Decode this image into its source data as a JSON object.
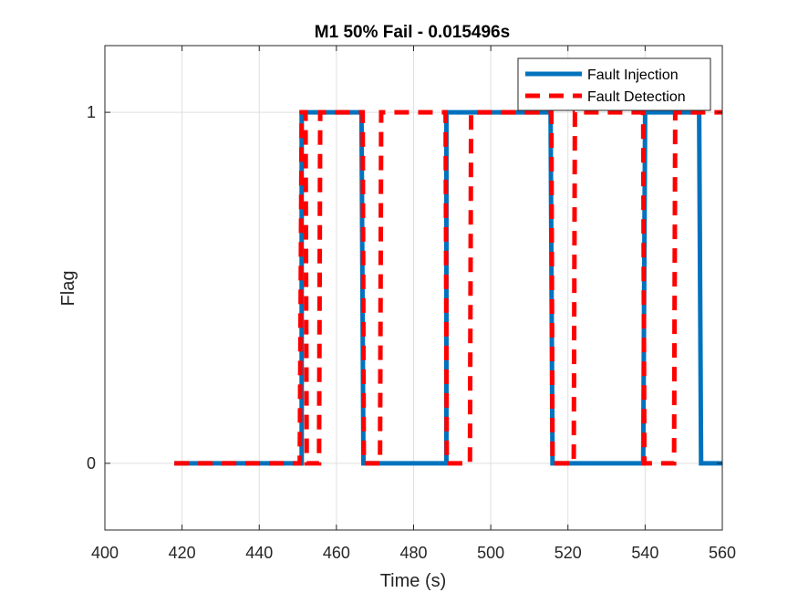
{
  "chart_data": {
    "type": "line",
    "title": "M1 50% Fail - 0.015496s",
    "xlabel": "Time (s)",
    "ylabel": "Flag",
    "xlim": [
      400,
      560
    ],
    "ylim": [
      -0.19,
      1.19
    ],
    "xticks": [
      400,
      420,
      440,
      460,
      480,
      500,
      520,
      540,
      560
    ],
    "yticks": [
      0,
      1
    ],
    "grid": true,
    "legend_position": "top-right",
    "series": [
      {
        "name": "Fault Injection",
        "color": "#0072BD",
        "style": "solid",
        "x": [
          418,
          451,
          451,
          466.5,
          467,
          488.5,
          488.5,
          515.5,
          516,
          539.5,
          540,
          554,
          554.5,
          560
        ],
        "y": [
          0,
          0,
          1,
          1,
          0,
          0,
          1,
          1,
          0,
          0,
          1,
          1,
          0,
          0
        ]
      },
      {
        "name": "Fault Detection",
        "color": "#FF0000",
        "style": "dashed",
        "x": [
          418,
          450.5,
          451,
          452,
          452.3,
          455.5,
          455.8,
          466.8,
          467.1,
          471.3,
          471.6,
          488.3,
          488.6,
          494.6,
          494.9,
          515.7,
          516,
          521.5,
          521.8,
          539.5,
          539.8,
          547.5,
          547.8,
          560
        ],
        "y": [
          0,
          0,
          1,
          1,
          0,
          0,
          1,
          1,
          0,
          0,
          1,
          1,
          0,
          0,
          1,
          1,
          0,
          0,
          1,
          1,
          0,
          0,
          1,
          1
        ]
      }
    ]
  }
}
